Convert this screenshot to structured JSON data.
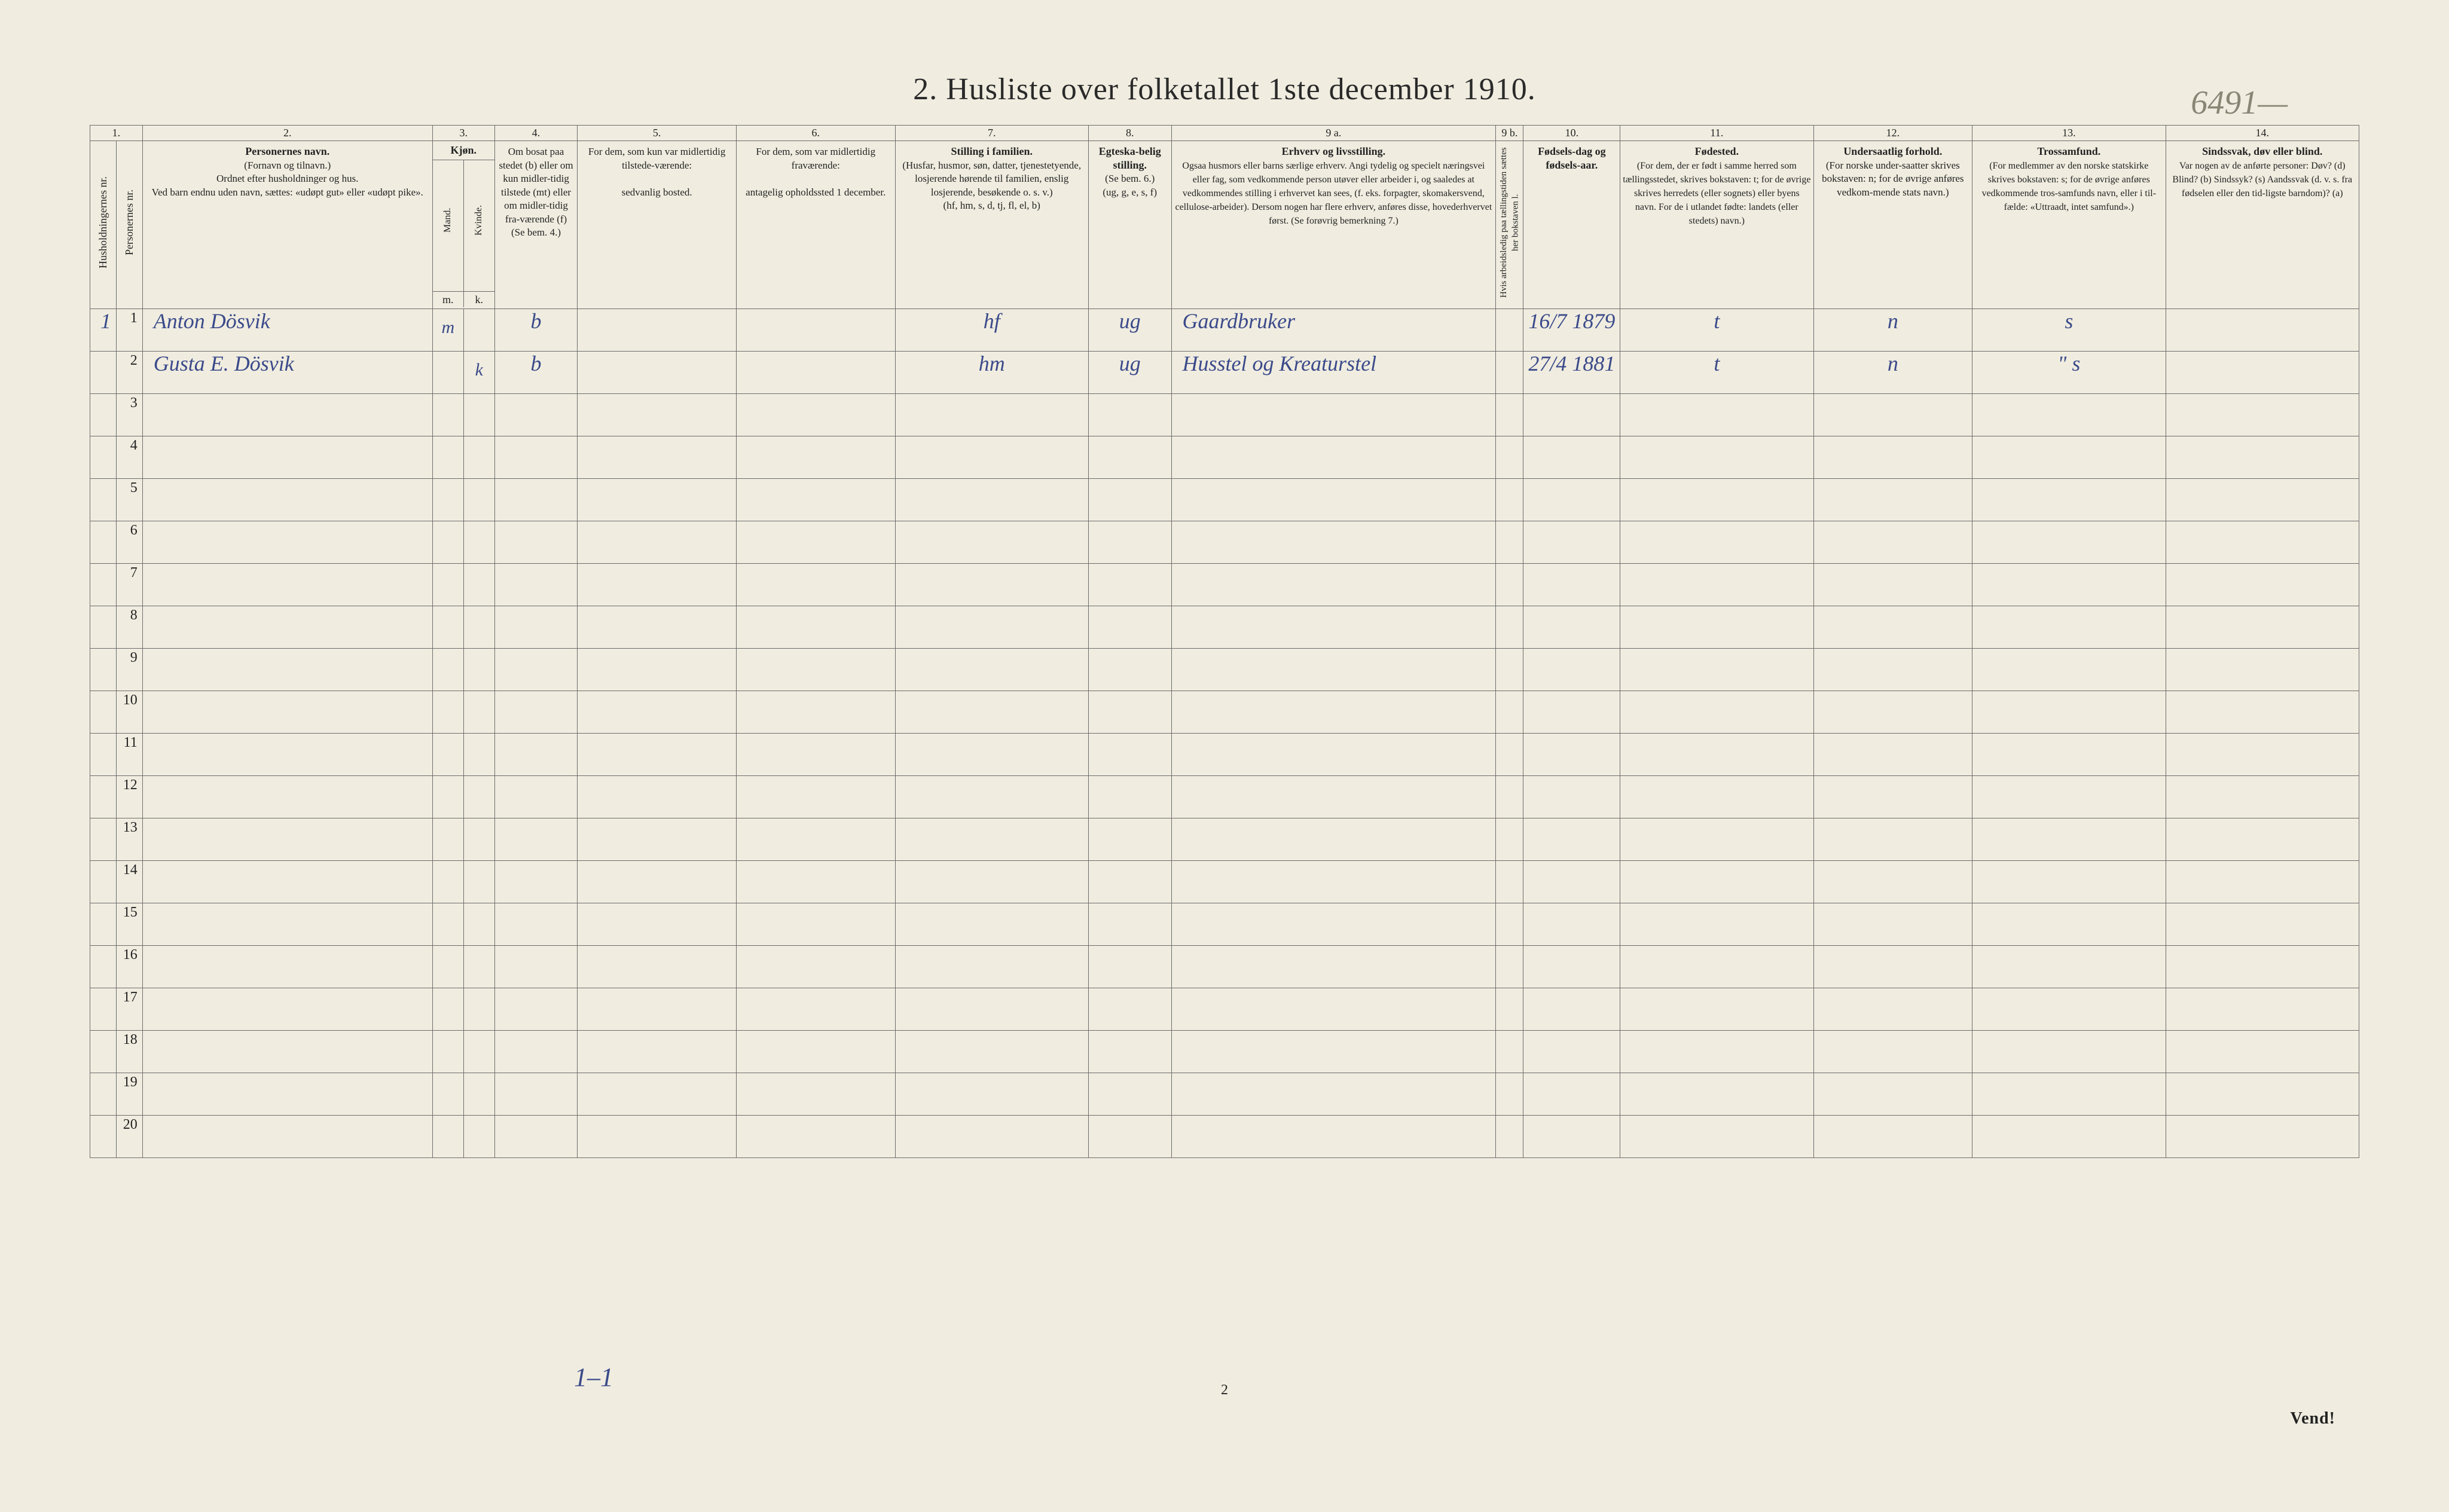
{
  "handwritten_corner": "6491—",
  "title": "2.  Husliste over folketallet 1ste december 1910.",
  "columns": {
    "numbers": [
      "1.",
      "2.",
      "3.",
      "4.",
      "5.",
      "6.",
      "7.",
      "8.",
      "9 a.",
      "9 b.",
      "10.",
      "11.",
      "12.",
      "13.",
      "14."
    ],
    "hhnr": "Husholdningernes nr.",
    "pnr": "Personernes nr.",
    "name_title": "Personernes navn.",
    "name_sub1": "(Fornavn og tilnavn.)",
    "name_sub2": "Ordnet efter husholdninger og hus.",
    "name_sub3": "Ved barn endnu uden navn, sættes: «udøpt gut» eller «udøpt pike».",
    "sex_title": "Kjøn.",
    "sex_sub": "Mand. Kvinde.",
    "sex_m": "m.",
    "sex_k": "k.",
    "bosat_title": "Om bosat paa stedet (b) eller om kun midler-tidig tilstede (mt) eller om midler-tidig fra-værende (f)",
    "bosat_sub": "(Se bem. 4.)",
    "tilst_title": "For dem, som kun var midlertidig tilstede-værende:",
    "tilst_sub": "sedvanlig bosted.",
    "frav_title": "For dem, som var midlertidig fraværende:",
    "frav_sub": "antagelig opholdssted 1 december.",
    "fam_title": "Stilling i familien.",
    "fam_sub1": "(Husfar, husmor, søn, datter, tjenestetyende, losjerende hørende til familien, enslig losjerende, besøkende o. s. v.)",
    "fam_sub2": "(hf, hm, s, d, tj, fl, el, b)",
    "egtesk_title": "Egteska-belig stilling.",
    "egtesk_sub1": "(Se bem. 6.)",
    "egtesk_sub2": "(ug, g, e, s, f)",
    "erhv_title": "Erhverv og livsstilling.",
    "erhv_sub": "Ogsaa husmors eller barns særlige erhverv. Angi tydelig og specielt næringsvei eller fag, som vedkommende person utøver eller arbeider i, og saaledes at vedkommendes stilling i erhvervet kan sees, (f. eks. forpagter, skomakersvend, cellulose-arbeider). Dersom nogen har flere erhverv, anføres disse, hovederhvervet først. (Se forøvrig bemerkning 7.)",
    "arbled": "Hvis arbeidsledig paa tællingstiden sættes her bokstaven l.",
    "fdag_title": "Fødsels-dag og fødsels-aar.",
    "fsted_title": "Fødested.",
    "fsted_sub": "(For dem, der er født i samme herred som tællingsstedet, skrives bokstaven: t; for de øvrige skrives herredets (eller sognets) eller byens navn. For de i utlandet fødte: landets (eller stedets) navn.)",
    "under_title": "Undersaatlig forhold.",
    "under_sub": "(For norske under-saatter skrives bokstaven: n; for de øvrige anføres vedkom-mende stats navn.)",
    "tros_title": "Trossamfund.",
    "tros_sub": "(For medlemmer av den norske statskirke skrives bokstaven: s; for de øvrige anføres vedkommende tros-samfunds navn, eller i til-fælde: «Uttraadt, intet samfund».)",
    "sinds_title": "Sindssvak, døv eller blind.",
    "sinds_sub": "Var nogen av de anførte personer: Døv? (d) Blind? (b) Sindssyk? (s) Aandssvak (d. v. s. fra fødselen eller den tid-ligste barndom)? (a)"
  },
  "rows": [
    {
      "hhnr": "1",
      "pnr": "1",
      "name": "Anton Dösvik",
      "sex_m": "m",
      "sex_k": "",
      "bosat": "b",
      "tilst": "",
      "frav": "",
      "fam": "hf",
      "egtesk": "ug",
      "erhv": "Gaardbruker",
      "arbled": "",
      "fdag": "16/7 1879",
      "fsted": "t",
      "under": "n",
      "tros": "s",
      "sinds": ""
    },
    {
      "hhnr": "",
      "pnr": "2",
      "name": "Gusta E. Dösvik",
      "sex_m": "",
      "sex_k": "k",
      "bosat": "b",
      "tilst": "",
      "frav": "",
      "fam": "hm",
      "egtesk": "ug",
      "erhv": "Husstel og Kreaturstel",
      "arbled": "",
      "fdag": "27/4 1881",
      "fsted": "t",
      "under": "n",
      "tros": "\" s",
      "sinds": ""
    }
  ],
  "row_numbers": [
    "1",
    "2",
    "3",
    "4",
    "5",
    "6",
    "7",
    "8",
    "9",
    "10",
    "11",
    "12",
    "13",
    "14",
    "15",
    "16",
    "17",
    "18",
    "19",
    "20"
  ],
  "footer_hw": "1–1",
  "footer_page": "2",
  "footer_vend": "Vend!",
  "styling": {
    "page_bg": "#f0ede0",
    "border_color": "#6b6b6b",
    "print_text_color": "#2a2a2a",
    "handwriting_color": "#3b4a8a",
    "corner_color": "#8a8676",
    "title_fontsize_pt": 39,
    "header_fontsize_pt": 14,
    "rownum_fontsize_pt": 18,
    "hw_fontsize_pt": 27
  }
}
